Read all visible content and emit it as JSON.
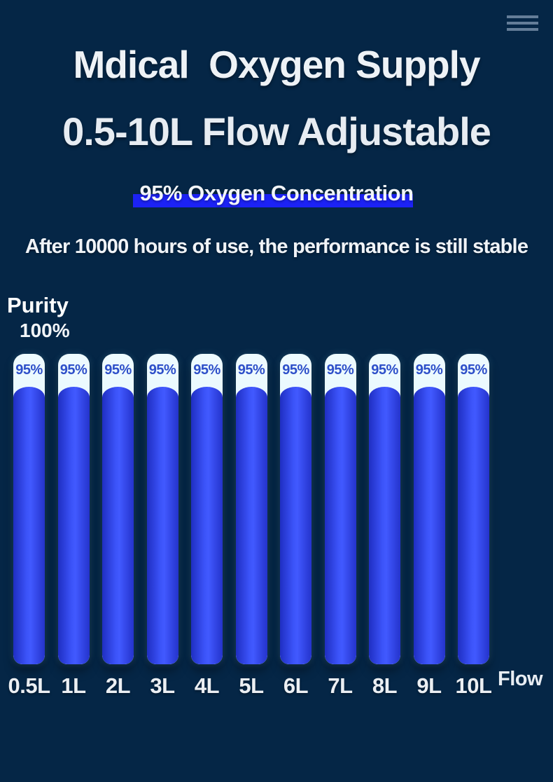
{
  "header": {
    "title": "Mdical  Oxygen Supply",
    "subtitle": "0.5-10L Flow Adjustable",
    "highlight": "95% Oxygen Concentration",
    "tagline": "After 10000 hours of use, the performance is still stable"
  },
  "colors": {
    "background": "#052646",
    "highlight_bar": "#1c22f5",
    "bar_fill_center": "#4159ff",
    "bar_fill_edge": "#1f2ec2",
    "bar_cap_top": "#eefbff",
    "bar_cap_bottom": "#c8e7f4",
    "bar_value_text": "#2d4fc9",
    "text_primary": "#eef2f6",
    "menu_icon": "#647d98"
  },
  "chart_data": {
    "type": "bar",
    "title": "",
    "ylabel": "Purity",
    "xlabel": "Flow",
    "y_top_tick": "100%",
    "ylim": [
      0,
      100
    ],
    "grid": false,
    "legend": "none",
    "categories": [
      "0.5L",
      "1L",
      "2L",
      "3L",
      "4L",
      "5L",
      "6L",
      "7L",
      "8L",
      "9L",
      "10L"
    ],
    "values": [
      95,
      95,
      95,
      95,
      95,
      95,
      95,
      95,
      95,
      95,
      95
    ],
    "bar_labels": [
      "95%",
      "95%",
      "95%",
      "95%",
      "95%",
      "95%",
      "95%",
      "95%",
      "95%",
      "95%",
      "95%"
    ]
  }
}
